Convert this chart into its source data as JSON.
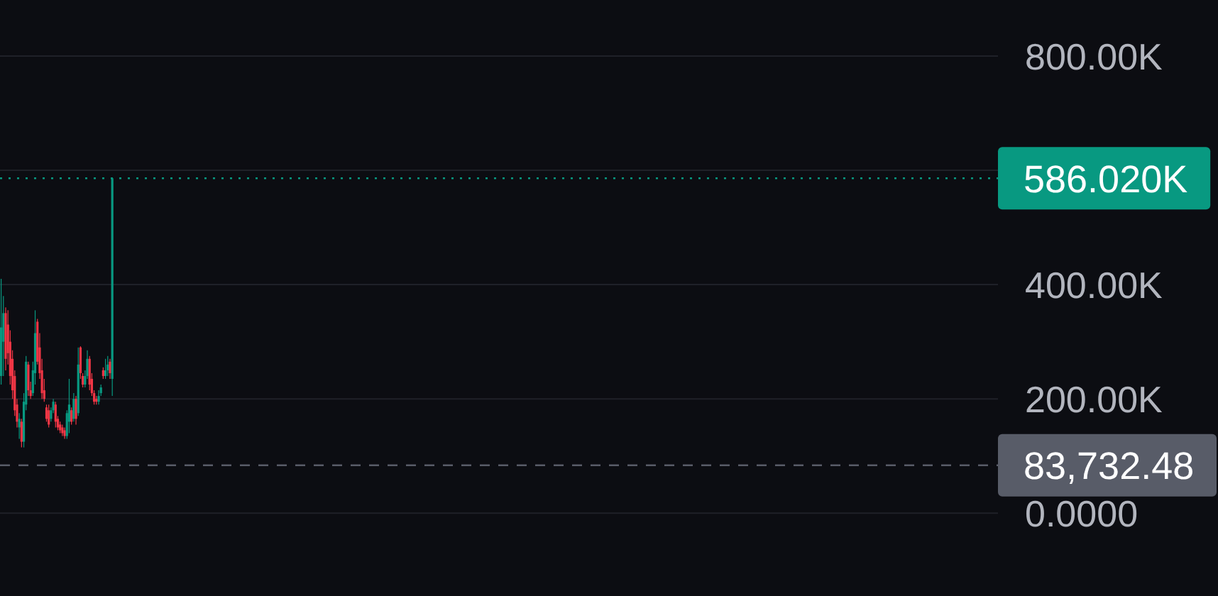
{
  "chart_data": {
    "type": "candlestick",
    "categories": [
      null,
      null,
      null,
      null,
      null,
      null,
      null,
      null,
      null,
      null,
      null,
      null,
      null,
      null,
      null,
      null,
      null,
      null,
      null,
      null,
      null,
      null,
      null,
      null,
      null,
      null,
      null,
      null,
      null,
      null,
      null,
      null,
      null,
      null,
      null,
      null,
      null,
      null,
      null,
      null,
      null,
      null,
      null,
      null,
      null,
      null,
      null,
      null,
      null,
      null,
      null,
      null,
      null,
      null,
      null,
      null,
      null,
      null,
      null,
      null,
      null,
      null,
      null,
      null,
      null,
      null,
      null,
      null,
      null,
      null,
      null,
      null,
      null,
      null,
      null,
      null,
      null,
      null,
      null,
      null,
      null,
      null,
      null,
      null,
      null,
      null,
      null,
      null,
      null,
      null,
      null,
      null,
      null,
      null,
      null,
      null,
      null,
      null,
      null,
      null,
      null,
      null,
      null,
      null,
      null,
      null,
      null,
      null,
      null,
      null,
      null,
      null,
      null,
      null,
      null,
      null,
      null,
      null,
      null,
      null,
      null,
      null,
      null,
      null,
      null,
      null,
      null,
      null,
      null,
      null,
      null,
      null,
      null,
      null,
      null,
      null,
      null,
      null,
      null,
      null,
      null,
      null,
      null,
      null,
      null,
      null,
      null,
      null,
      null,
      null,
      null,
      null,
      null,
      null,
      null,
      null,
      null,
      null,
      null,
      null,
      null,
      null,
      null,
      null,
      null,
      null,
      null,
      null,
      null,
      null,
      null,
      null,
      null,
      null,
      null,
      null,
      null,
      null,
      null,
      null,
      null,
      null,
      null,
      null,
      null,
      null,
      null,
      null,
      null,
      null,
      null,
      null,
      null,
      null,
      null,
      null,
      null,
      null,
      null,
      null,
      null,
      null,
      null,
      null,
      null,
      null,
      null,
      null,
      null,
      null,
      null,
      null,
      null,
      null,
      null,
      null,
      null,
      null,
      null,
      null,
      null,
      null,
      null,
      null,
      null,
      null,
      null,
      null,
      null,
      null,
      null,
      null,
      null,
      null,
      null,
      null,
      null,
      null,
      null,
      null,
      null,
      null,
      null,
      null,
      null,
      null,
      null,
      null,
      null,
      null,
      null,
      null,
      null,
      null,
      null,
      null,
      null,
      null,
      null,
      null,
      null,
      null,
      null,
      null,
      null,
      null,
      null,
      null,
      null,
      null,
      null,
      null,
      null,
      null,
      null,
      null,
      null,
      null,
      null,
      null,
      null,
      null,
      null,
      null,
      null,
      null,
      null,
      null,
      null,
      null,
      null,
      null,
      null,
      null,
      null,
      null,
      null,
      null,
      null,
      null,
      null,
      null,
      null,
      null,
      null,
      null,
      null,
      null,
      null,
      null,
      null,
      null,
      null,
      null,
      null,
      null,
      null,
      null,
      null,
      null,
      null,
      null,
      null,
      null,
      null,
      null,
      null,
      null,
      null,
      null,
      null,
      null,
      null,
      null,
      null,
      null,
      null,
      null,
      null,
      null,
      null,
      null,
      null,
      null,
      null,
      null,
      null,
      null,
      null,
      null,
      null,
      null,
      null,
      null,
      null,
      null,
      null,
      null,
      null,
      null,
      null,
      null,
      null,
      null,
      null,
      null,
      null,
      null,
      null,
      null,
      null,
      null,
      null,
      null,
      null,
      null,
      null,
      null,
      null,
      null,
      null,
      null,
      null,
      null,
      null,
      null,
      null,
      null,
      null,
      null,
      null,
      null,
      null,
      null,
      null,
      null,
      null,
      null,
      null,
      null,
      null,
      null,
      null,
      null,
      null,
      null,
      null,
      null,
      null,
      null,
      null,
      null,
      null,
      null,
      null,
      null,
      null,
      null,
      null,
      null,
      null,
      null,
      null,
      null,
      null,
      null,
      null,
      null,
      null,
      null,
      null,
      null,
      null,
      null,
      null,
      null,
      null,
      null,
      null,
      null
    ],
    "ohlc": [
      [
        240000,
        410000,
        225000,
        325000
      ],
      [
        300000,
        380000,
        240000,
        350000
      ],
      [
        350000,
        360000,
        250000,
        270000
      ],
      [
        330000,
        355000,
        260000,
        280000
      ],
      [
        300000,
        320000,
        225000,
        240000
      ],
      [
        270000,
        285000,
        200000,
        215000
      ],
      [
        240000,
        250000,
        170000,
        180000
      ],
      [
        190000,
        200000,
        150000,
        160000
      ],
      [
        150000,
        175000,
        130000,
        165000
      ],
      [
        160000,
        165000,
        115000,
        125000
      ],
      [
        125000,
        210000,
        115000,
        195000
      ],
      [
        190000,
        275000,
        180000,
        265000
      ],
      [
        260000,
        265000,
        205000,
        215000
      ],
      [
        215000,
        230000,
        200000,
        205000
      ],
      [
        210000,
        265000,
        205000,
        250000
      ],
      [
        245000,
        355000,
        225000,
        315000
      ],
      [
        335000,
        340000,
        260000,
        265000
      ],
      [
        290000,
        315000,
        235000,
        245000
      ],
      [
        250000,
        270000,
        200000,
        210000
      ],
      [
        215000,
        235000,
        195000,
        200000
      ],
      [
        185000,
        190000,
        160000,
        165000
      ],
      [
        180000,
        190000,
        150000,
        155000
      ],
      [
        165000,
        185000,
        160000,
        180000
      ],
      [
        180000,
        200000,
        175000,
        195000
      ],
      [
        190000,
        195000,
        150000,
        160000
      ],
      [
        165000,
        170000,
        145000,
        150000
      ],
      [
        155000,
        160000,
        140000,
        145000
      ],
      [
        150000,
        155000,
        135000,
        140000
      ],
      [
        145000,
        150000,
        130000,
        135000
      ],
      [
        135000,
        180000,
        130000,
        175000
      ],
      [
        160000,
        235000,
        140000,
        190000
      ],
      [
        180000,
        185000,
        155000,
        160000
      ],
      [
        165000,
        210000,
        160000,
        200000
      ],
      [
        200000,
        205000,
        155000,
        165000
      ],
      [
        175000,
        290000,
        170000,
        260000
      ],
      [
        290000,
        292000,
        235000,
        245000
      ],
      [
        240000,
        245000,
        220000,
        225000
      ],
      [
        225000,
        250000,
        220000,
        240000
      ],
      [
        240000,
        285000,
        235000,
        270000
      ],
      [
        270000,
        275000,
        215000,
        225000
      ],
      [
        235000,
        245000,
        205000,
        210000
      ],
      [
        210000,
        215000,
        190000,
        195000
      ],
      [
        200000,
        205000,
        190000,
        195000
      ],
      [
        195000,
        215000,
        190000,
        205000
      ],
      [
        210000,
        225000,
        205000,
        220000
      ],
      [
        250000,
        255000,
        235000,
        240000
      ],
      [
        240000,
        270000,
        235000,
        250000
      ],
      [
        250000,
        275000,
        240000,
        260000
      ],
      [
        265000,
        270000,
        235000,
        245000
      ],
      [
        235000,
        586020,
        205000,
        586020
      ],
      null,
      null,
      null,
      null,
      null,
      null,
      null,
      null,
      null,
      null,
      null,
      null,
      null,
      null,
      null,
      null,
      null,
      null,
      null,
      null,
      null,
      null,
      null,
      null,
      null,
      null,
      null,
      null,
      null,
      null,
      null,
      null,
      null,
      null,
      null,
      null,
      null,
      null,
      null,
      null,
      null,
      null,
      null,
      null,
      null,
      null,
      null,
      null,
      null,
      null,
      null,
      null,
      null,
      null,
      null,
      null,
      null,
      null,
      null,
      null,
      null,
      null,
      null,
      null,
      null,
      null,
      null,
      null,
      null,
      null,
      null,
      null,
      null,
      null,
      null,
      null,
      null,
      null,
      null,
      null,
      null,
      null,
      null,
      null,
      null,
      null,
      null,
      null,
      null,
      null,
      null,
      null,
      null,
      null,
      null,
      null,
      null,
      null,
      null,
      null,
      null,
      null,
      null,
      null,
      null,
      null,
      null,
      null,
      null,
      null,
      null,
      null,
      null,
      null,
      null,
      null,
      null,
      null,
      null,
      null,
      null,
      null,
      null,
      null,
      null,
      null,
      null,
      null,
      null,
      null,
      null,
      null,
      null,
      null,
      null,
      null,
      null,
      null,
      null,
      null,
      null,
      null,
      null,
      null,
      null,
      null,
      null,
      null,
      null,
      null,
      null,
      null,
      null,
      null,
      null,
      null,
      null,
      null,
      null,
      null,
      null,
      null,
      null,
      null,
      null,
      null,
      null,
      null,
      null,
      null,
      null,
      null,
      null,
      null,
      null,
      null,
      null,
      null,
      null,
      null,
      null,
      null,
      null,
      null,
      null,
      null,
      null,
      null,
      null,
      null,
      null,
      null,
      null,
      null,
      null,
      null,
      null,
      null,
      null,
      null,
      null,
      null,
      null,
      null,
      null,
      null,
      null,
      null,
      null,
      null,
      null,
      null,
      null,
      null,
      null,
      null,
      null,
      null,
      null,
      null,
      null,
      null,
      null,
      null,
      null,
      null,
      null,
      null,
      null,
      null,
      null,
      null,
      null,
      null,
      null,
      null,
      null,
      null,
      null,
      null,
      null,
      null,
      null,
      null,
      null,
      null,
      null,
      null,
      null,
      null,
      null,
      null,
      null,
      null,
      null,
      null,
      null,
      null,
      null,
      null,
      null,
      null,
      null,
      null,
      null,
      null,
      null,
      null,
      null,
      null,
      null,
      null,
      null,
      null,
      null,
      null,
      null,
      null,
      null,
      null,
      null,
      null,
      null,
      null,
      null,
      null,
      null,
      null,
      null,
      null,
      null,
      null,
      null,
      null,
      null,
      null,
      null,
      null,
      null,
      null,
      null,
      null,
      null,
      null,
      null,
      null,
      null,
      null,
      null,
      null,
      null,
      null,
      null,
      null,
      null,
      null,
      null,
      null,
      null,
      null,
      null,
      null,
      null,
      null,
      null,
      null,
      null,
      null,
      null,
      null,
      null,
      null,
      null,
      null,
      null,
      null,
      null,
      null,
      null,
      null,
      null,
      null,
      null,
      null,
      null,
      null,
      null,
      null,
      null,
      null,
      null,
      null,
      null,
      null,
      null,
      null,
      null,
      null,
      null,
      null,
      null,
      null,
      null,
      null,
      null,
      null,
      null,
      null,
      null,
      null,
      null,
      null,
      null,
      null,
      null,
      null,
      null,
      null,
      null,
      null,
      null,
      null,
      null,
      null,
      null,
      null,
      null,
      null,
      null,
      null
    ],
    "colors": [
      "#089981",
      "#089981",
      "#f23645",
      "#f23645",
      "#f23645",
      "#f23645",
      "#f23645",
      "#f23645",
      "#089981",
      "#f23645",
      "#089981",
      "#089981",
      "#f23645",
      "#f23645",
      "#089981",
      "#089981",
      "#f23645",
      "#f23645",
      "#f23645",
      "#f23645",
      "#f23645",
      "#f23645",
      "#089981",
      "#089981",
      "#f23645",
      "#f23645",
      "#f23645",
      "#f23645",
      "#f23645",
      "#089981",
      "#089981",
      "#f23645",
      "#089981",
      "#f23645",
      "#089981",
      "#f23645",
      "#f23645",
      "#089981",
      "#089981",
      "#f23645",
      "#f23645",
      "#f23645",
      "#f23645",
      "#089981",
      "#089981",
      "#f23645",
      "#089981",
      "#089981",
      "#f23645",
      "#089981",
      null,
      null,
      null,
      null,
      null,
      null,
      null,
      null,
      null,
      null,
      null,
      null,
      null,
      null,
      null,
      null,
      null,
      null,
      null,
      null,
      null,
      null,
      null,
      null,
      null,
      null,
      null,
      null,
      null,
      null,
      null,
      null,
      null,
      null,
      null,
      null,
      null,
      null,
      null,
      null,
      null,
      null,
      null,
      null,
      null,
      null,
      null,
      null,
      null,
      null,
      null,
      null,
      null,
      null,
      null,
      null,
      null,
      null,
      null,
      null,
      null,
      null,
      null,
      null,
      null,
      null,
      null,
      null,
      null,
      null,
      null,
      null,
      null,
      null,
      null,
      null,
      null,
      null,
      null,
      null,
      null,
      null,
      null,
      null,
      null,
      null,
      null,
      null,
      null,
      null,
      null,
      null,
      null,
      null,
      null,
      null,
      null,
      null,
      null,
      null,
      null,
      null,
      null,
      null,
      null,
      null,
      null,
      null,
      null,
      null,
      null,
      null,
      null,
      null,
      null,
      null,
      null,
      null,
      null,
      null,
      null,
      null,
      null,
      null,
      null,
      null,
      null,
      null,
      null,
      null,
      null,
      null,
      null,
      null,
      null,
      null,
      null,
      null,
      null,
      null,
      null,
      null,
      null,
      null,
      null,
      null,
      null,
      null,
      null,
      null,
      null,
      null,
      null,
      null,
      null,
      null,
      null,
      null,
      null,
      null,
      null,
      null,
      null,
      null,
      null,
      null,
      null,
      null,
      null,
      null,
      null,
      null,
      null,
      null,
      null,
      null,
      null,
      null,
      null,
      null,
      null,
      null,
      null,
      null,
      null,
      null,
      null,
      null,
      null,
      null,
      null,
      null,
      null,
      null,
      null,
      null,
      null,
      null,
      null,
      null,
      null,
      null,
      null,
      null,
      null,
      null,
      null,
      null,
      null,
      null,
      null,
      null,
      null,
      null,
      null,
      null,
      null,
      null,
      null,
      null,
      null,
      null,
      null,
      null,
      null,
      null,
      null,
      null,
      null,
      null,
      null,
      null,
      null,
      null,
      null,
      null,
      null,
      null,
      null,
      null,
      null,
      null,
      null,
      null,
      null,
      null,
      null,
      null,
      null,
      null,
      null,
      null,
      null,
      null,
      null,
      null,
      null,
      null,
      null,
      null,
      null,
      null,
      null,
      null,
      null,
      null,
      null,
      null,
      null,
      null,
      null,
      null,
      null,
      null,
      null,
      null,
      null,
      null,
      null,
      null,
      null,
      null,
      null,
      null,
      null,
      null,
      null,
      null,
      null,
      null,
      null,
      null,
      null,
      null,
      null,
      null,
      null,
      null,
      null,
      null,
      null,
      null,
      null,
      null,
      null,
      null,
      null,
      null,
      null,
      null,
      null,
      null,
      null,
      null,
      null,
      null,
      null,
      null,
      null,
      null,
      null,
      null,
      null,
      null,
      null,
      null,
      null,
      null,
      null,
      null,
      null,
      null,
      null,
      null,
      null,
      null,
      null,
      null,
      null,
      null,
      null,
      null,
      null,
      null,
      null,
      null,
      null,
      null,
      null,
      null,
      null,
      null,
      null,
      null,
      null,
      null,
      null,
      null,
      null,
      null,
      null,
      null,
      null,
      null,
      null,
      null,
      null,
      null,
      null,
      null,
      null,
      null,
      null,
      null,
      null,
      null,
      null,
      null,
      null,
      null,
      null,
      null,
      null,
      null,
      null,
      null,
      null,
      null,
      null,
      null
    ],
    "ylim": [
      -145000,
      898000
    ],
    "yticks": [
      {
        "value": 0,
        "label": "0.0000"
      },
      {
        "value": 200000,
        "label": "200.00K"
      },
      {
        "value": 400000,
        "label": "400.00K"
      },
      {
        "value": 600000,
        "label": null
      },
      {
        "value": 800000,
        "label": "800.00K"
      }
    ],
    "grid": "y",
    "tick_labels": "y",
    "ref_lines": [
      {
        "axis": "y",
        "value": 586020,
        "label": "586.020K",
        "color": "#089981",
        "line_style": "dotted"
      },
      {
        "axis": "y",
        "value": 83732.48,
        "label": "83,732.48",
        "color": "#585c68",
        "line_style": "dashed"
      }
    ]
  }
}
